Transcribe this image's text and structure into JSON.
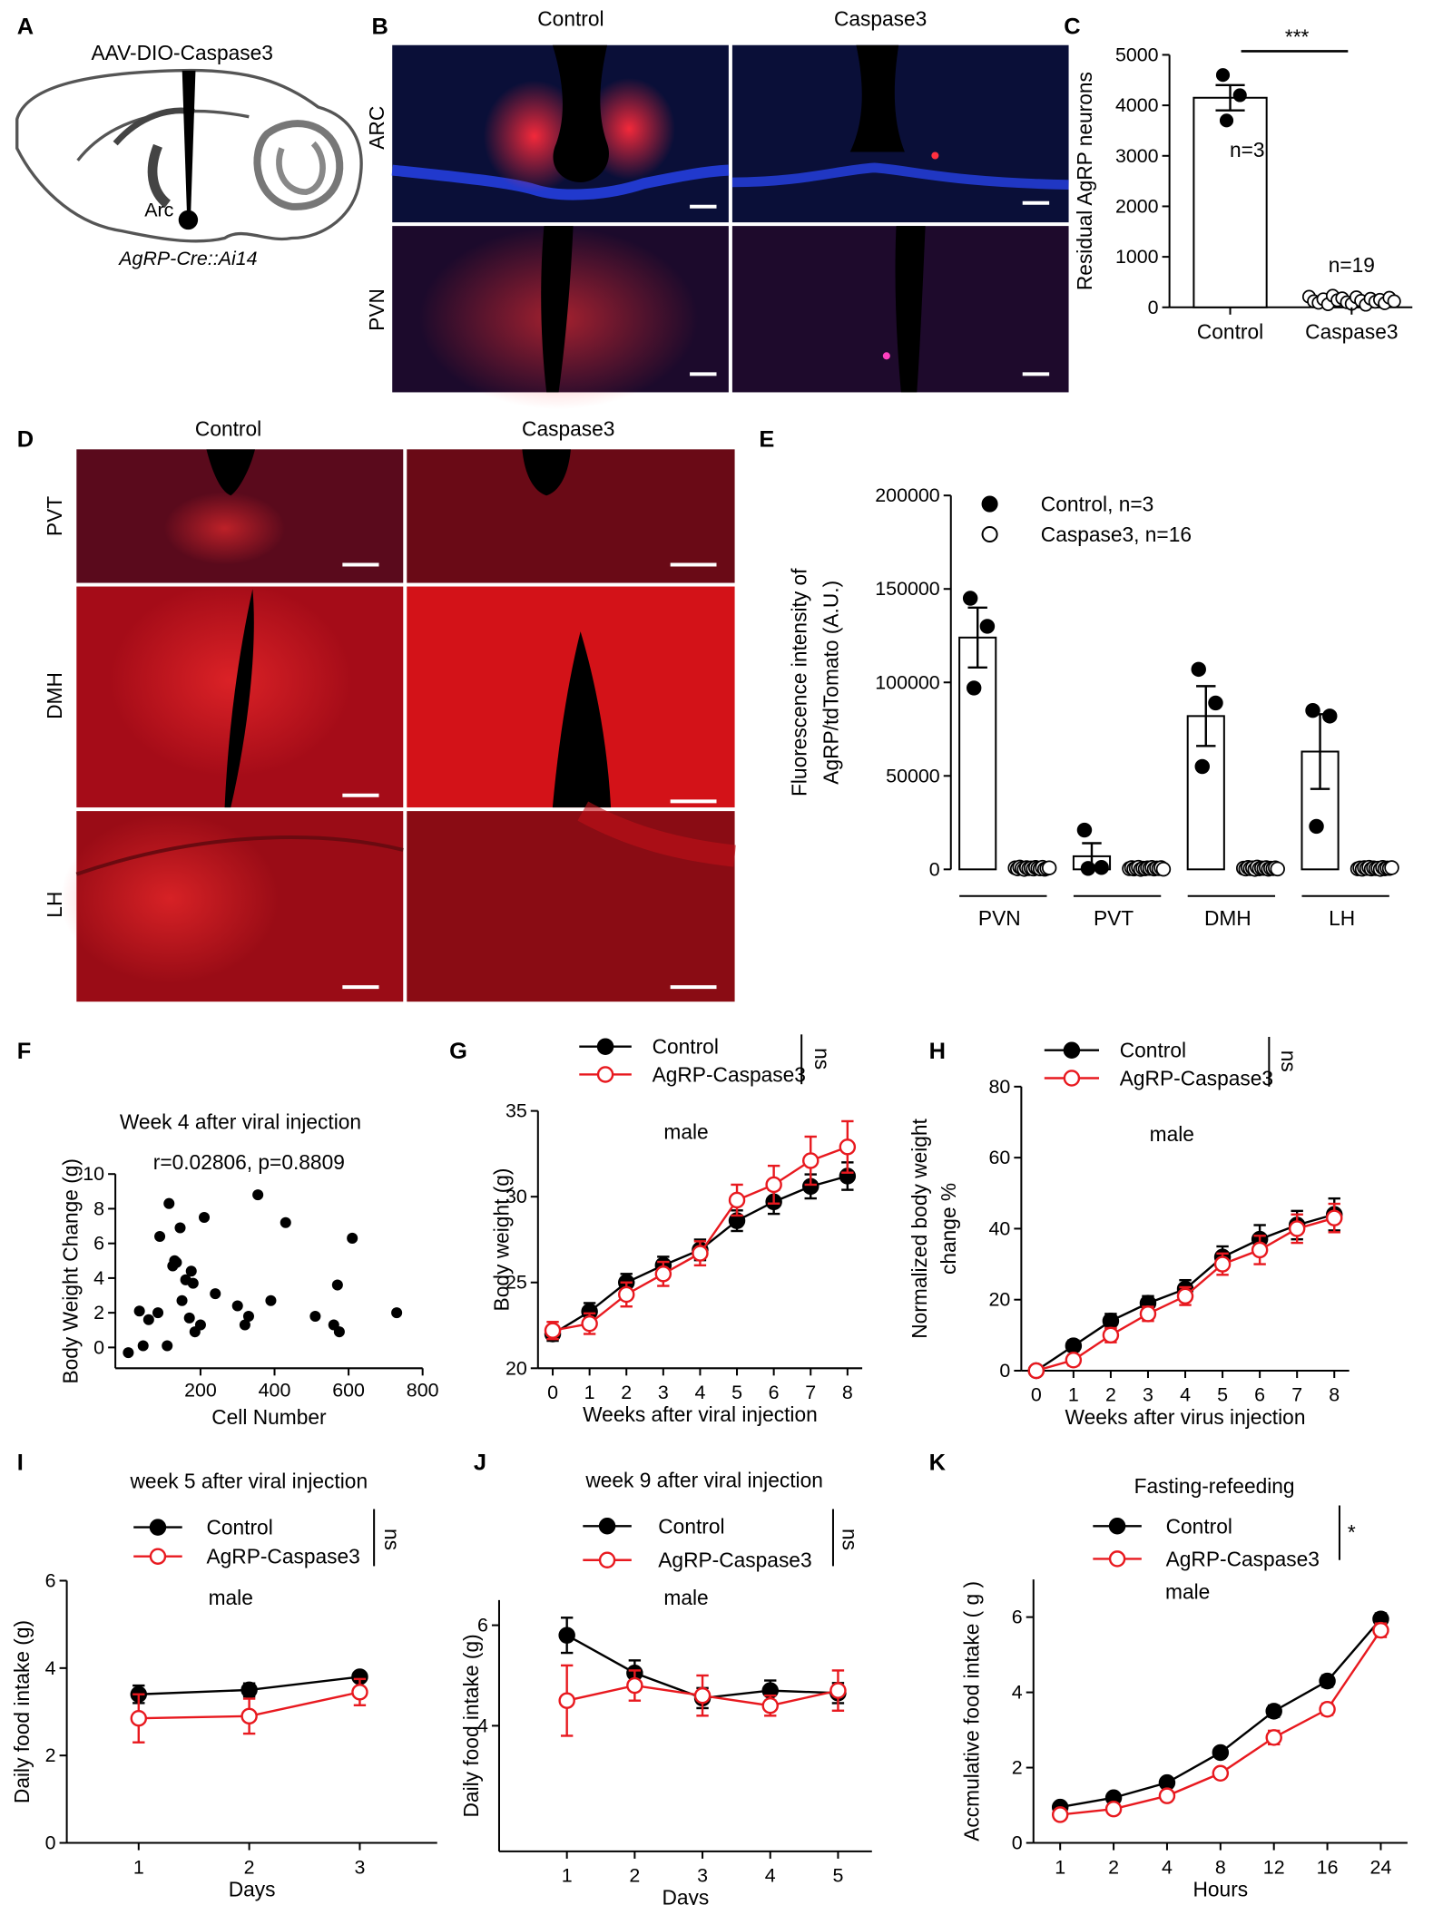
{
  "panel_labels": [
    "A",
    "B",
    "C",
    "D",
    "E",
    "F",
    "G",
    "H",
    "I",
    "J",
    "K"
  ],
  "panel_a": {
    "construct": "AAV-DIO-Caspase3",
    "region": "Arc",
    "mouse": "AgRP-Cre::Ai14"
  },
  "panel_b": {
    "columns": [
      "Control",
      "Caspase3"
    ],
    "rows": [
      "ARC",
      "PVN"
    ]
  },
  "panel_d": {
    "columns": [
      "Control",
      "Caspase3"
    ],
    "rows": [
      "PVT",
      "DMH",
      "LH"
    ]
  },
  "chart_data": [
    {
      "type": "bar",
      "ylabel": "Residual AgRP neurons",
      "categories": [
        "Control",
        "Caspase3"
      ],
      "values": [
        4150,
        150
      ],
      "errors": [
        250,
        30
      ],
      "points": [
        [
          4600,
          4200,
          3700
        ],
        [
          210,
          120,
          90,
          160,
          60,
          230,
          140,
          180,
          100,
          70,
          200,
          130,
          50,
          170,
          110,
          150,
          80,
          190,
          120
        ]
      ],
      "color": "#ffffff",
      "edgecolor": "#000000",
      "marker_fill": [
        "#000000",
        "#ffffff"
      ],
      "annotations": [
        "n=3",
        "n=19",
        "***"
      ],
      "ylim": [
        0,
        5000
      ],
      "yticks": [
        0,
        1000,
        2000,
        3000,
        4000,
        5000
      ]
    },
    {
      "type": "grouped_bar",
      "ylabel": [
        "Fluorescence intensity of",
        "AgRP/tdTomato (A.U.)"
      ],
      "categories": [
        "PVN",
        "PVT",
        "DMH",
        "LH"
      ],
      "series": [
        {
          "name": "Control, n=3",
          "color": "#000000",
          "fill": "#ffffff",
          "marker_fill": "#000000",
          "values": [
            124000,
            7000,
            82000,
            63000
          ],
          "errors": [
            16000,
            7000,
            16000,
            20000
          ],
          "points": [
            [
              145000,
              130000,
              97000
            ],
            [
              21000,
              1000,
              500
            ],
            [
              107000,
              89000,
              55000
            ],
            [
              85000,
              82000,
              23000
            ]
          ]
        },
        {
          "name": "Caspase3, n=16",
          "color": "#000000",
          "fill": "#ffffff",
          "marker_fill": "#ffffff",
          "values": [
            500,
            500,
            500,
            500
          ],
          "errors": [
            300,
            300,
            300,
            300
          ],
          "points": [
            [
              800,
              300,
              1200,
              500,
              0,
              900,
              400,
              700,
              200,
              1000,
              600,
              300,
              1100,
              100,
              500,
              800
            ],
            [
              400,
              900,
              200,
              700,
              1100,
              0,
              600,
              300,
              800,
              500,
              1000,
              200,
              700,
              400,
              900,
              100
            ],
            [
              600,
              200,
              1000,
              400,
              800,
              0,
              1200,
              300,
              700,
              500,
              900,
              100,
              600,
              400,
              800,
              200
            ],
            [
              300,
              700,
              100,
              900,
              500,
              1100,
              200,
              800,
              400,
              600,
              0,
              1000,
              300,
              700,
              500,
              900
            ]
          ]
        }
      ],
      "ylim": [
        0,
        200000
      ],
      "yticks": [
        0,
        50000,
        100000,
        150000,
        200000
      ]
    },
    {
      "type": "scatter",
      "title": "Week 4 after viral injection",
      "annotations": [
        "r=0.02806, p=0.8809"
      ],
      "x": [
        5,
        35,
        45,
        60,
        85,
        90,
        110,
        115,
        125,
        130,
        135,
        145,
        150,
        160,
        170,
        175,
        180,
        185,
        200,
        210,
        240,
        300,
        320,
        330,
        355,
        390,
        430,
        510,
        560,
        570,
        575,
        610,
        730
      ],
      "values": [
        -0.3,
        2.1,
        0.1,
        1.6,
        2.0,
        6.4,
        0.1,
        8.3,
        4.7,
        5.0,
        4.9,
        6.9,
        2.7,
        3.9,
        1.7,
        4.4,
        3.7,
        0.9,
        1.3,
        7.5,
        3.1,
        2.4,
        1.3,
        1.8,
        8.8,
        2.7,
        7.2,
        1.8,
        1.3,
        3.6,
        0.9,
        6.3,
        2.0
      ],
      "color": "#000000",
      "xlim": [
        -30,
        800
      ],
      "xticks": [
        200,
        400,
        600,
        800
      ],
      "ylim": [
        -1.2,
        10
      ],
      "yticks": [
        0,
        2,
        4,
        6,
        8,
        10
      ],
      "xlabel": "Cell Number",
      "ylabel": "Body Weight Change (g)"
    },
    {
      "type": "line",
      "annotations": [
        "male",
        "ns"
      ],
      "x": [
        0,
        1,
        2,
        3,
        4,
        5,
        6,
        7,
        8
      ],
      "xlim": [
        -0.4,
        8.4
      ],
      "xticks": [
        0,
        1,
        2,
        3,
        4,
        5,
        6,
        7,
        8
      ],
      "ylim": [
        20,
        35
      ],
      "yticks": [
        20,
        25,
        30,
        35
      ],
      "xlabel": "Weeks after viral injection",
      "ylabel": "Body weight (g)",
      "series": [
        {
          "name": "Control",
          "color": "#000000",
          "marker_fill": "#000000",
          "values": [
            22,
            23.3,
            25,
            26,
            26.9,
            28.6,
            29.7,
            30.6,
            31.2
          ],
          "errors": [
            0.4,
            0.5,
            0.5,
            0.5,
            0.6,
            0.6,
            0.7,
            0.7,
            0.8
          ]
        },
        {
          "name": "AgRP-Caspase3",
          "color": "#e8191f",
          "marker_fill": "#ffffff",
          "values": [
            22.2,
            22.6,
            24.3,
            25.5,
            26.7,
            29.8,
            30.7,
            32.1,
            32.9
          ],
          "errors": [
            0.5,
            0.6,
            0.7,
            0.7,
            0.7,
            0.9,
            1.1,
            1.4,
            1.5
          ]
        }
      ]
    },
    {
      "type": "line",
      "annotations": [
        "male",
        "ns"
      ],
      "x": [
        0,
        1,
        2,
        3,
        4,
        5,
        6,
        7,
        8
      ],
      "xlim": [
        -0.4,
        8.4
      ],
      "xticks": [
        0,
        1,
        2,
        3,
        4,
        5,
        6,
        7,
        8
      ],
      "ylim": [
        0,
        80
      ],
      "yticks": [
        0,
        20,
        40,
        60,
        80
      ],
      "xlabel": "Weeks after virus injection",
      "ylabel": [
        "Normalized body weight",
        "change %"
      ],
      "series": [
        {
          "name": "Control",
          "color": "#000000",
          "marker_fill": "#000000",
          "values": [
            0,
            7,
            14,
            19,
            23,
            32,
            37,
            41,
            44
          ],
          "errors": [
            0.5,
            1.5,
            2,
            2,
            2.5,
            3,
            4,
            4,
            4.5
          ]
        },
        {
          "name": "AgRP-Caspase3",
          "color": "#e8191f",
          "marker_fill": "#ffffff",
          "values": [
            0,
            3,
            10,
            16,
            21,
            30,
            34,
            40,
            43
          ],
          "errors": [
            0.5,
            1.5,
            2,
            2,
            2.5,
            3,
            4,
            4,
            4
          ]
        }
      ]
    },
    {
      "type": "line",
      "title": "week 5 after viral injection",
      "annotations": [
        "male",
        "ns"
      ],
      "x": [
        1,
        2,
        3
      ],
      "xlim": [
        0.35,
        3.7
      ],
      "xticks": [
        1,
        2,
        3
      ],
      "ylim": [
        0,
        6
      ],
      "yticks": [
        0,
        2,
        4,
        6
      ],
      "xlabel": "Days",
      "ylabel": "Daily food intake (g)",
      "series": [
        {
          "name": "Control",
          "color": "#000000",
          "marker_fill": "#000000",
          "values": [
            3.4,
            3.5,
            3.8
          ],
          "errors": [
            0.2,
            0.15,
            0.1
          ]
        },
        {
          "name": "AgRP-Caspase3",
          "color": "#e8191f",
          "marker_fill": "#ffffff",
          "values": [
            2.85,
            2.9,
            3.45
          ],
          "errors": [
            0.55,
            0.4,
            0.3
          ]
        }
      ]
    },
    {
      "type": "line",
      "title": "week 9 after viral injection",
      "annotations": [
        "male",
        "ns"
      ],
      "x": [
        1,
        2,
        3,
        4,
        5
      ],
      "xlim": [
        0,
        5.5
      ],
      "xticks": [
        1,
        2,
        3,
        4,
        5
      ],
      "ylim": [
        1.5,
        6.5
      ],
      "yticks": [
        4,
        6
      ],
      "xlabel": "Days",
      "ylabel": "Daily food intake (g)",
      "series": [
        {
          "name": "Control",
          "color": "#000000",
          "marker_fill": "#000000",
          "values": [
            5.8,
            5.05,
            4.55,
            4.7,
            4.65
          ],
          "errors": [
            0.35,
            0.25,
            0.2,
            0.2,
            0.2
          ]
        },
        {
          "name": "AgRP-Caspase3",
          "color": "#e8191f",
          "marker_fill": "#ffffff",
          "values": [
            4.5,
            4.8,
            4.6,
            4.4,
            4.7
          ],
          "errors": [
            0.7,
            0.3,
            0.4,
            0.2,
            0.4
          ]
        }
      ]
    },
    {
      "type": "line",
      "title": "Fasting-refeeding",
      "annotations": [
        "male",
        "*"
      ],
      "categories": [
        "1",
        "2",
        "4",
        "8",
        "12",
        "16",
        "24"
      ],
      "ylim": [
        0,
        7
      ],
      "yticks": [
        0,
        2,
        4,
        6
      ],
      "xlabel": "Hours",
      "ylabel": "Accmulative food intake ( g )",
      "series": [
        {
          "name": "Control",
          "color": "#000000",
          "marker_fill": "#000000",
          "values": [
            0.95,
            1.2,
            1.6,
            2.4,
            3.5,
            4.3,
            5.95
          ],
          "errors": [
            0.05,
            0.08,
            0.1,
            0.1,
            0.15,
            0.15,
            0.15
          ]
        },
        {
          "name": "AgRP-Caspase3",
          "color": "#e8191f",
          "marker_fill": "#ffffff",
          "values": [
            0.75,
            0.9,
            1.25,
            1.85,
            2.8,
            3.55,
            5.65
          ],
          "errors": [
            0.05,
            0.08,
            0.08,
            0.1,
            0.18,
            0.15,
            0.18
          ]
        }
      ]
    }
  ]
}
